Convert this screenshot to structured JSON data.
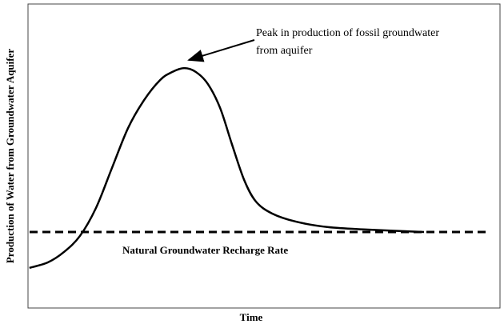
{
  "chart_data": {
    "type": "line",
    "x_label": "Time",
    "y_label": "Production of Water from Groundwater Aquifer",
    "x": [
      0.3,
      4.2,
      7.6,
      11.0,
      14.4,
      17.8,
      21.2,
      24.6,
      28.0,
      30.5,
      33.1,
      35.6,
      38.1,
      40.7,
      43.2,
      45.8,
      48.3,
      51.7,
      56.8,
      63.6,
      72.0,
      83.9
    ],
    "values": [
      13.2,
      15.0,
      18.4,
      23.7,
      32.9,
      46.1,
      59.2,
      68.4,
      75.0,
      77.6,
      78.9,
      77.6,
      73.7,
      65.8,
      53.9,
      42.1,
      35.0,
      31.1,
      28.4,
      26.6,
      25.8,
      25.0
    ],
    "color": "#000000",
    "xlim": [
      0,
      100
    ],
    "ylim": [
      0,
      100
    ],
    "reference_line": {
      "label": "Natural Groundwater Recharge Rate",
      "value": 25.0,
      "style": "dashed"
    },
    "annotation": {
      "lines": [
        "Peak in production of fossil groundwater",
        "from aquifer"
      ]
    }
  }
}
